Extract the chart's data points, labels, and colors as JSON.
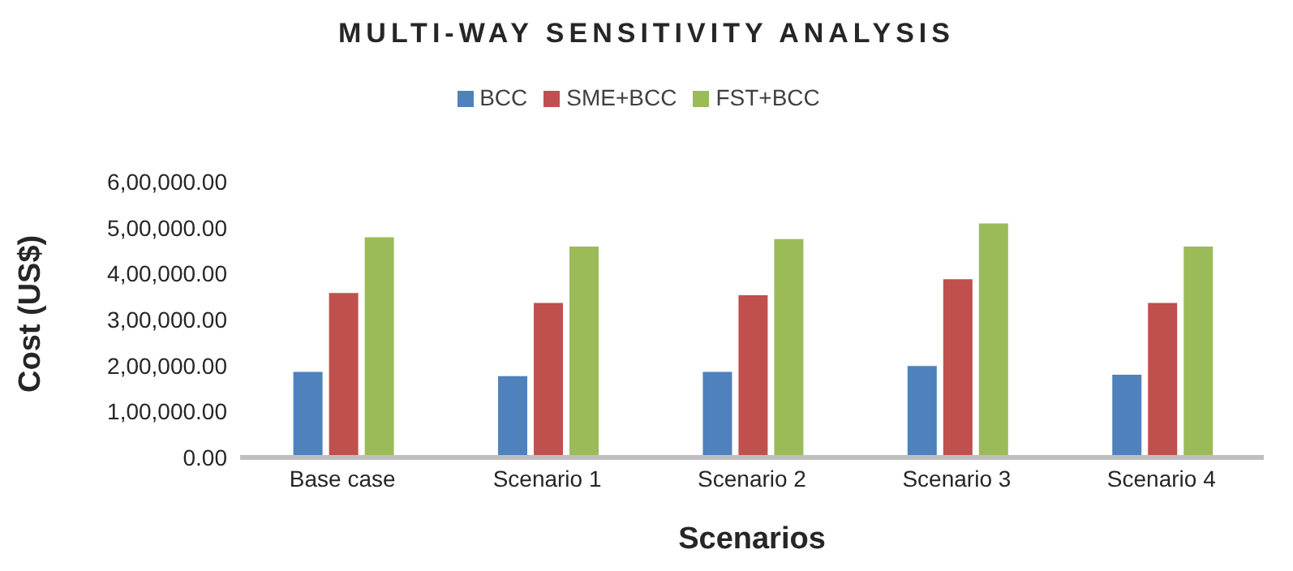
{
  "chart_data": {
    "type": "bar",
    "title": "MULTI-WAY SENSITIVITY ANALYSIS",
    "xlabel": "Scenarios",
    "ylabel": "Cost (US$)",
    "categories": [
      "Base case",
      "Scenario 1",
      "Scenario 2",
      "Scenario 3",
      "Scenario 4"
    ],
    "series": [
      {
        "name": "BCC",
        "color": "#4f81bd",
        "values": [
          186000,
          177000,
          186000,
          199000,
          180000
        ]
      },
      {
        "name": "SME+BCC",
        "color": "#c0504d",
        "values": [
          358000,
          336000,
          353000,
          388000,
          336000
        ]
      },
      {
        "name": "FST+BCC",
        "color": "#9bbb59",
        "values": [
          479000,
          459000,
          475000,
          509000,
          459000
        ]
      }
    ],
    "ylim": [
      0,
      600000
    ],
    "yticks": [
      {
        "value": 0,
        "label": "0.00"
      },
      {
        "value": 100000,
        "label": "1,00,000.00"
      },
      {
        "value": 200000,
        "label": "2,00,000.00"
      },
      {
        "value": 300000,
        "label": "3,00,000.00"
      },
      {
        "value": 400000,
        "label": "4,00,000.00"
      },
      {
        "value": 500000,
        "label": "5,00,000.00"
      },
      {
        "value": 600000,
        "label": "6,00,000.00"
      }
    ],
    "grid": false,
    "legend": "top"
  }
}
